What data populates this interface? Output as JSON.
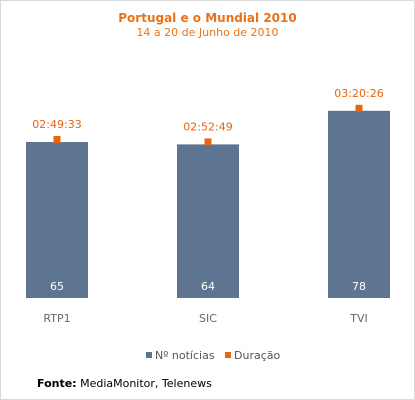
{
  "chart_data": {
    "type": "bar",
    "title": "Portugal e o Mundial 2010",
    "subtitle": "14 a 20 de Junho de 2010",
    "categories": [
      "RTP1",
      "SIC",
      "TVI"
    ],
    "series": [
      {
        "name": "Nº notícias",
        "values": [
          65,
          64,
          78
        ],
        "color": "#5d7591"
      },
      {
        "name": "Duração",
        "values": [
          "02:49:33",
          "02:52:49",
          "03:20:26"
        ],
        "color": "#e8650f"
      }
    ],
    "ylim": [
      0,
      90
    ],
    "grid": false,
    "legend": "bottom"
  },
  "source": {
    "label": "Fonte:",
    "text": "MediaMonitor, Telenews"
  }
}
